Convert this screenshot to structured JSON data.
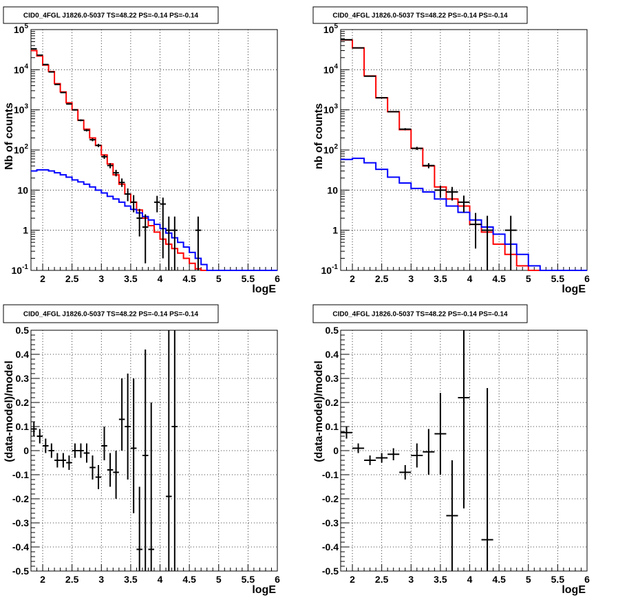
{
  "chart_data": [
    {
      "type": "line",
      "title": "CID0_4FGL J1826.0-5037 TS=48.22 PS=-0.14 PS=-0.14",
      "xlabel": "logE",
      "ylabel": "Nb of counts",
      "xlim": [
        1.8,
        6
      ],
      "ylim": [
        0.1,
        100000
      ],
      "yscale": "log",
      "grid": true,
      "x_ticks": [
        "2",
        "2.5",
        "3",
        "3.5",
        "4",
        "4.5",
        "5",
        "5.5",
        "6"
      ],
      "y_ticks": [
        "10^-1",
        "1",
        "10",
        "10^2",
        "10^3",
        "10^4",
        "10^5"
      ],
      "bin_edges": [
        1.8,
        1.9,
        2.0,
        2.1,
        2.2,
        2.3,
        2.4,
        2.5,
        2.6,
        2.7,
        2.8,
        2.9,
        3.0,
        3.1,
        3.2,
        3.3,
        3.4,
        3.5,
        3.6,
        3.7,
        3.8,
        3.9,
        4.0,
        4.1,
        4.2,
        4.3,
        4.4,
        4.5,
        4.6,
        4.7,
        4.8,
        4.9,
        5.0,
        5.1,
        5.2,
        5.3,
        5.4,
        5.5,
        5.6,
        5.7,
        5.8,
        5.9,
        6.0
      ],
      "series": [
        {
          "color": "#ff0000",
          "kind": "hist",
          "values": [
            30000,
            22000,
            13000,
            9000,
            4500,
            2800,
            1500,
            1000,
            550,
            330,
            200,
            130,
            75,
            45,
            24,
            14,
            8,
            5,
            3.2,
            2,
            1.3,
            0.9,
            0.6,
            0.45,
            0.35,
            0.27,
            0.2,
            0.15,
            0.11,
            0.1,
            0.1,
            0.1,
            0.1,
            0.1,
            0.1,
            0.1,
            0.1,
            0.1,
            0.1,
            0.1,
            0.1,
            0.1
          ]
        },
        {
          "color": "#0000ff",
          "kind": "hist",
          "values": [
            30,
            32,
            32,
            30,
            27,
            24,
            21,
            18,
            16,
            14,
            12,
            10,
            8.5,
            7,
            6,
            5,
            4,
            3.3,
            2.7,
            2.2,
            1.8,
            1.4,
            1.1,
            0.85,
            0.65,
            0.5,
            0.38,
            0.28,
            0.2,
            0.14,
            0.1,
            0.1,
            0.1,
            0.1,
            0.1,
            0.1,
            0.1,
            0.1,
            0.1,
            0.1,
            0.1,
            0.1
          ]
        },
        {
          "color": "#000000",
          "kind": "points",
          "points": [
            {
              "x": 1.85,
              "y": 33000,
              "lo": 32000,
              "hi": 34000
            },
            {
              "x": 1.95,
              "y": 23000,
              "lo": 22500,
              "hi": 23500
            },
            {
              "x": 2.05,
              "y": 13500,
              "lo": 13200,
              "hi": 13800
            },
            {
              "x": 2.15,
              "y": 8800,
              "lo": 8600,
              "hi": 9000
            },
            {
              "x": 2.25,
              "y": 4300,
              "lo": 4200,
              "hi": 4400
            },
            {
              "x": 2.35,
              "y": 2700,
              "lo": 2600,
              "hi": 2800
            },
            {
              "x": 2.45,
              "y": 1400,
              "lo": 1350,
              "hi": 1450
            },
            {
              "x": 2.55,
              "y": 1000,
              "lo": 960,
              "hi": 1040
            },
            {
              "x": 2.65,
              "y": 550,
              "lo": 520,
              "hi": 580
            },
            {
              "x": 2.75,
              "y": 310,
              "lo": 290,
              "hi": 330
            },
            {
              "x": 2.85,
              "y": 180,
              "lo": 165,
              "hi": 195
            },
            {
              "x": 2.95,
              "y": 130,
              "lo": 118,
              "hi": 142
            },
            {
              "x": 3.05,
              "y": 68,
              "lo": 60,
              "hi": 76
            },
            {
              "x": 3.15,
              "y": 41,
              "lo": 35,
              "hi": 47
            },
            {
              "x": 3.25,
              "y": 27,
              "lo": 22,
              "hi": 32
            },
            {
              "x": 3.35,
              "y": 15.5,
              "lo": 12,
              "hi": 19.5
            },
            {
              "x": 3.45,
              "y": 8,
              "lo": 5.3,
              "hi": 11
            },
            {
              "x": 3.55,
              "y": 5,
              "lo": 2.8,
              "hi": 7.5
            },
            {
              "x": 3.65,
              "y": 2,
              "lo": 0.7,
              "hi": 3.4
            },
            {
              "x": 3.75,
              "y": 1.2,
              "lo": 0.15,
              "hi": 2.5
            },
            {
              "x": 3.95,
              "y": 5,
              "lo": 2.8,
              "hi": 7.2
            },
            {
              "x": 4.05,
              "y": 4.5,
              "lo": 0.2,
              "hi": 6.5
            },
            {
              "x": 4.15,
              "y": 1,
              "lo": 0.1,
              "hi": 2.2
            },
            {
              "x": 4.25,
              "y": 1,
              "lo": 0.1,
              "hi": 2.2
            },
            {
              "x": 4.65,
              "y": 1,
              "lo": 0.1,
              "hi": 2.2
            }
          ]
        }
      ]
    },
    {
      "type": "line",
      "title": "CID0_4FGL J1826.0-5037 TS=48.22 PS=-0.14 PS=-0.14",
      "xlabel": "logE",
      "ylabel": "nb of counts",
      "xlim": [
        1.8,
        6
      ],
      "ylim": [
        0.1,
        100000
      ],
      "yscale": "log",
      "grid": true,
      "x_ticks": [
        "2",
        "2.5",
        "3",
        "3.5",
        "4",
        "4.5",
        "5",
        "5.5",
        "6"
      ],
      "y_ticks": [
        "10^-1",
        "1",
        "10",
        "10^2",
        "10^3",
        "10^4",
        "10^5"
      ],
      "bin_edges": [
        1.8,
        2.0,
        2.2,
        2.4,
        2.6,
        2.8,
        3.0,
        3.2,
        3.4,
        3.6,
        3.8,
        4.0,
        4.2,
        4.4,
        4.6,
        4.8,
        5.0,
        5.2,
        5.4,
        5.6,
        5.8,
        6.0
      ],
      "series": [
        {
          "color": "#ff0000",
          "kind": "hist",
          "values": [
            55000,
            35000,
            7000,
            2000,
            900,
            320,
            110,
            40,
            12,
            6,
            4,
            1.4,
            0.9,
            0.45,
            0.25,
            0.13,
            0.1,
            0.1,
            0.1,
            0.1,
            0.1
          ]
        },
        {
          "color": "#0000ff",
          "kind": "hist",
          "values": [
            58,
            62,
            48,
            33,
            21,
            15,
            11,
            9,
            6,
            4,
            2.8,
            1.8,
            1.2,
            0.8,
            0.45,
            0.25,
            0.13,
            0.1,
            0.1,
            0.1,
            0.1
          ]
        },
        {
          "color": "#000000",
          "kind": "points",
          "points": [
            {
              "x": 1.9,
              "y": 56000,
              "lo": 55000,
              "hi": 57000
            },
            {
              "x": 2.1,
              "y": 35000,
              "lo": 34500,
              "hi": 35500
            },
            {
              "x": 2.3,
              "y": 6900,
              "lo": 6750,
              "hi": 7050
            },
            {
              "x": 2.5,
              "y": 2000,
              "lo": 1950,
              "hi": 2050
            },
            {
              "x": 2.7,
              "y": 900,
              "lo": 880,
              "hi": 920
            },
            {
              "x": 2.9,
              "y": 330,
              "lo": 310,
              "hi": 350
            },
            {
              "x": 3.1,
              "y": 110,
              "lo": 100,
              "hi": 120
            },
            {
              "x": 3.3,
              "y": 41,
              "lo": 35,
              "hi": 47
            },
            {
              "x": 3.5,
              "y": 10,
              "lo": 6.5,
              "hi": 13
            },
            {
              "x": 3.7,
              "y": 9,
              "lo": 5.5,
              "hi": 12
            },
            {
              "x": 3.9,
              "y": 5,
              "lo": 2.8,
              "hi": 7.3
            },
            {
              "x": 4.1,
              "y": 1.4,
              "lo": 0.35,
              "hi": 2.7
            },
            {
              "x": 4.3,
              "y": 1,
              "lo": 0.1,
              "hi": 2.3
            },
            {
              "x": 4.7,
              "y": 1,
              "lo": 0.1,
              "hi": 2.3
            }
          ]
        }
      ]
    },
    {
      "type": "scatter",
      "title": "CID0_4FGL J1826.0-5037 TS=48.22 PS=-0.14 PS=-0.14",
      "xlabel": "logE",
      "ylabel": "(data-model)/model",
      "xlim": [
        1.8,
        6
      ],
      "ylim": [
        -0.5,
        0.5
      ],
      "grid": true,
      "x_ticks": [
        "2",
        "2.5",
        "3",
        "3.5",
        "4",
        "4.5",
        "5",
        "5.5",
        "6"
      ],
      "y_ticks": [
        "-0.5",
        "-0.4",
        "-0.3",
        "-0.2",
        "-0.1",
        "0",
        "0.1",
        "0.2",
        "0.3",
        "0.4",
        "0.5"
      ],
      "xerr": 0.05,
      "points": [
        {
          "x": 1.85,
          "y": 0.09,
          "lo": 0.06,
          "hi": 0.12
        },
        {
          "x": 1.95,
          "y": 0.06,
          "lo": 0.03,
          "hi": 0.09
        },
        {
          "x": 2.05,
          "y": 0.02,
          "lo": -0.01,
          "hi": 0.05
        },
        {
          "x": 2.15,
          "y": 0.0,
          "lo": -0.03,
          "hi": 0.03
        },
        {
          "x": 2.25,
          "y": -0.04,
          "lo": -0.07,
          "hi": -0.01
        },
        {
          "x": 2.35,
          "y": -0.04,
          "lo": -0.07,
          "hi": -0.01
        },
        {
          "x": 2.45,
          "y": -0.05,
          "lo": -0.08,
          "hi": -0.02
        },
        {
          "x": 2.55,
          "y": 0.0,
          "lo": -0.03,
          "hi": 0.03
        },
        {
          "x": 2.65,
          "y": 0.0,
          "lo": -0.03,
          "hi": 0.03
        },
        {
          "x": 2.75,
          "y": -0.01,
          "lo": -0.05,
          "hi": 0.03
        },
        {
          "x": 2.85,
          "y": -0.07,
          "lo": -0.12,
          "hi": -0.02
        },
        {
          "x": 2.95,
          "y": -0.11,
          "lo": -0.16,
          "hi": -0.06
        },
        {
          "x": 3.05,
          "y": 0.02,
          "lo": -0.04,
          "hi": 0.1
        },
        {
          "x": 3.15,
          "y": -0.08,
          "lo": -0.15,
          "hi": -0.01
        },
        {
          "x": 3.25,
          "y": -0.09,
          "lo": -0.2,
          "hi": 0.0
        },
        {
          "x": 3.35,
          "y": 0.13,
          "lo": 0.0,
          "hi": 0.3
        },
        {
          "x": 3.45,
          "y": 0.1,
          "lo": -0.12,
          "hi": 0.32
        },
        {
          "x": 3.55,
          "y": 0.01,
          "lo": -0.26,
          "hi": 0.3
        },
        {
          "x": 3.65,
          "y": -0.41,
          "lo": -0.5,
          "hi": -0.15
        },
        {
          "x": 3.75,
          "y": -0.02,
          "lo": -0.5,
          "hi": 0.42
        },
        {
          "x": 3.85,
          "y": -0.41,
          "lo": -0.5,
          "hi": 0.2
        },
        {
          "x": 4.15,
          "y": -0.19,
          "lo": -0.5,
          "hi": 0.5
        },
        {
          "x": 4.25,
          "y": 0.1,
          "lo": -0.5,
          "hi": 0.5
        }
      ]
    },
    {
      "type": "scatter",
      "title": "CID0_4FGL J1826.0-5037 TS=48.22 PS=-0.14 PS=-0.14",
      "xlabel": "logE",
      "ylabel": "(data-model)/model",
      "xlim": [
        1.8,
        6
      ],
      "ylim": [
        -0.5,
        0.5
      ],
      "grid": true,
      "x_ticks": [
        "2",
        "2.5",
        "3",
        "3.5",
        "4",
        "4.5",
        "5",
        "5.5",
        "6"
      ],
      "y_ticks": [
        "-0.5",
        "-0.4",
        "-0.3",
        "-0.2",
        "-0.1",
        "0",
        "0.1",
        "0.2",
        "0.3",
        "0.4",
        "0.5"
      ],
      "xerr": 0.1,
      "points": [
        {
          "x": 1.9,
          "y": 0.075,
          "lo": 0.05,
          "hi": 0.1
        },
        {
          "x": 2.1,
          "y": 0.01,
          "lo": -0.01,
          "hi": 0.03
        },
        {
          "x": 2.3,
          "y": -0.04,
          "lo": -0.06,
          "hi": -0.02
        },
        {
          "x": 2.5,
          "y": -0.03,
          "lo": -0.05,
          "hi": -0.01
        },
        {
          "x": 2.7,
          "y": -0.015,
          "lo": -0.04,
          "hi": 0.01
        },
        {
          "x": 2.9,
          "y": -0.09,
          "lo": -0.12,
          "hi": -0.06
        },
        {
          "x": 3.1,
          "y": -0.02,
          "lo": -0.07,
          "hi": 0.03
        },
        {
          "x": 3.3,
          "y": -0.005,
          "lo": -0.1,
          "hi": 0.09
        },
        {
          "x": 3.5,
          "y": 0.07,
          "lo": -0.1,
          "hi": 0.24
        },
        {
          "x": 3.7,
          "y": -0.27,
          "lo": -0.5,
          "hi": -0.04
        },
        {
          "x": 3.9,
          "y": 0.22,
          "lo": -0.24,
          "hi": 0.5
        },
        {
          "x": 4.3,
          "y": -0.37,
          "lo": -0.5,
          "hi": 0.26
        }
      ]
    }
  ]
}
